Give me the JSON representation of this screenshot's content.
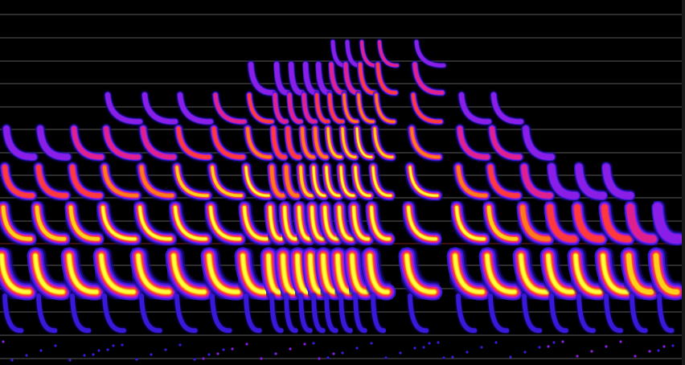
{
  "colors": {
    "background": "#000000",
    "gridline": "#5a5a5a",
    "marker_line": "#7a1f1f",
    "palette": [
      "#1a0a8c",
      "#3a1ae0",
      "#8a1ee6",
      "#e0208c",
      "#ff3a3a",
      "#ff7a1a",
      "#ffd01a",
      "#ffff40"
    ]
  },
  "view": {
    "type": "spectrogram",
    "colormap": "hot-purple",
    "grid": true
  }
}
